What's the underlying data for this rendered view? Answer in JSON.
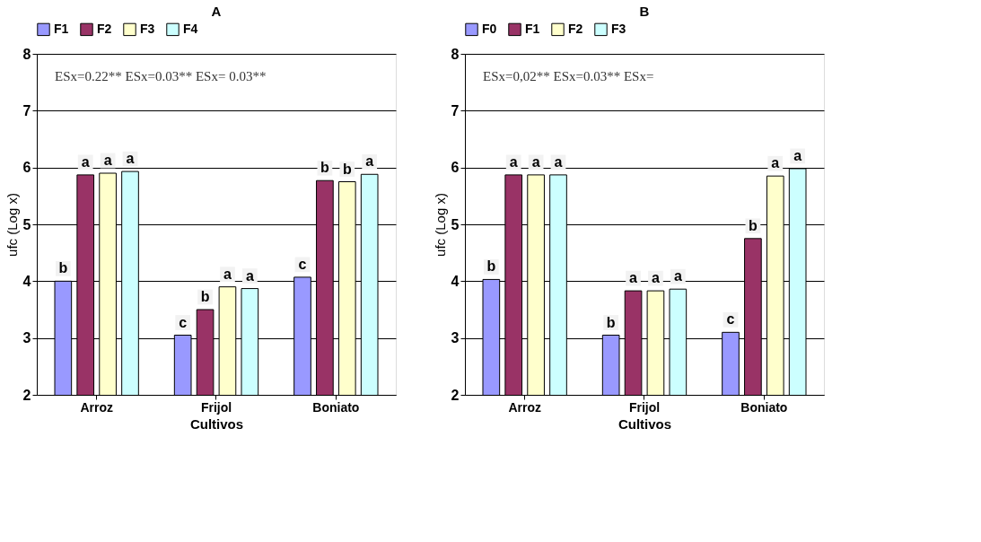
{
  "chart_data": [
    {
      "type": "bar",
      "title": "A",
      "xlabel": "Cultivos",
      "ylabel": "ufc (Log x)",
      "categories": [
        "Arroz",
        "Frijol",
        "Boniato"
      ],
      "ylim": [
        2,
        8
      ],
      "yticks": [
        2,
        3,
        4,
        5,
        6,
        7,
        8
      ],
      "grid": "y",
      "legend": "top",
      "annotations": [
        "ESx=0.22**  ESx=0.03**  ESx= 0.03**"
      ],
      "series": [
        {
          "name": "F1",
          "color": "#9999ff",
          "values": [
            4.0,
            3.05,
            4.07
          ],
          "value_labels": [
            "b",
            "c",
            "c"
          ]
        },
        {
          "name": "F2",
          "color": "#993366",
          "values": [
            5.87,
            3.5,
            5.77
          ],
          "value_labels": [
            "a",
            "b",
            "b"
          ]
        },
        {
          "name": "F3",
          "color": "#ffffcc",
          "values": [
            5.9,
            3.9,
            5.75
          ],
          "value_labels": [
            "a",
            "a",
            "b"
          ]
        },
        {
          "name": "F4",
          "color": "#ccffff",
          "values": [
            5.93,
            3.87,
            5.88
          ],
          "value_labels": [
            "a",
            "a",
            "a"
          ]
        }
      ]
    },
    {
      "type": "bar",
      "title": "B",
      "xlabel": "Cultivos",
      "ylabel": "ufc (Log x)",
      "categories": [
        "Arroz",
        "Frijol",
        "Boniato"
      ],
      "ylim": [
        2,
        8
      ],
      "yticks": [
        2,
        3,
        4,
        5,
        6,
        7,
        8
      ],
      "grid": "y",
      "legend": "top",
      "annotations": [
        "ESx=0,02** ESx=0.03**  ESx="
      ],
      "series": [
        {
          "name": "F0",
          "color": "#9999ff",
          "values": [
            4.03,
            3.05,
            3.1
          ],
          "value_labels": [
            "b",
            "b",
            "c"
          ]
        },
        {
          "name": "F1",
          "color": "#993366",
          "values": [
            5.87,
            3.83,
            4.75
          ],
          "value_labels": [
            "a",
            "a",
            "b"
          ]
        },
        {
          "name": "F2",
          "color": "#ffffcc",
          "values": [
            5.87,
            3.83,
            5.85
          ],
          "value_labels": [
            "a",
            "a",
            "a"
          ]
        },
        {
          "name": "F3",
          "color": "#ccffff",
          "values": [
            5.87,
            3.86,
            5.98
          ],
          "value_labels": [
            "a",
            "a",
            "a"
          ]
        }
      ]
    }
  ]
}
